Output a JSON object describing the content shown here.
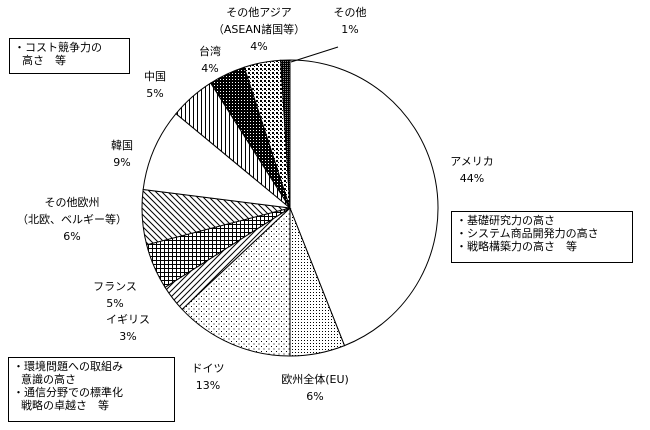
{
  "chart_data": {
    "type": "pie",
    "start_angle_deg": 0,
    "direction": "clockwise",
    "slices": [
      {
        "label": "アメリカ",
        "pct_label": "44%",
        "value": 44,
        "pattern": "white"
      },
      {
        "label": "欧州全体(EU)",
        "pct_label": "6%",
        "value": 6,
        "pattern": "dots-fine"
      },
      {
        "label": "ドイツ",
        "pct_label": "13%",
        "value": 13,
        "pattern": "dots-sparse"
      },
      {
        "label": "イギリス",
        "pct_label": "3%",
        "value": 3,
        "pattern": "diag-up"
      },
      {
        "label": "フランス",
        "pct_label": "5%",
        "value": 5,
        "pattern": "grid"
      },
      {
        "label": "その他欧州",
        "label2": "（北欧、ベルギー等）",
        "pct_label": "6%",
        "value": 6,
        "pattern": "diag-down"
      },
      {
        "label": "韓国",
        "pct_label": "9%",
        "value": 9,
        "pattern": "white"
      },
      {
        "label": "中国",
        "pct_label": "5%",
        "value": 5,
        "pattern": "vertical"
      },
      {
        "label": "台湾",
        "pct_label": "4%",
        "value": 4,
        "pattern": "crosshatch-dense"
      },
      {
        "label": "その他アジア",
        "label2": "（ASEAN諸国等）",
        "pct_label": "4%",
        "value": 4,
        "pattern": "dots-coarse"
      },
      {
        "label": "その他",
        "pct_label": "1%",
        "value": 1,
        "pattern": "dark"
      }
    ]
  },
  "notes": {
    "top": {
      "lines": [
        "・コスト競争力の",
        "高さ　等"
      ]
    },
    "right": {
      "lines": [
        "・基礎研究力の高さ",
        "・システム商品開発力の高さ",
        "・戦略構築力の高さ　等"
      ]
    },
    "bottom": {
      "lines": [
        "・環境問題への取組み",
        "意識の高さ",
        "・通信分野での標準化",
        "戦略の卓越さ　等"
      ]
    }
  }
}
